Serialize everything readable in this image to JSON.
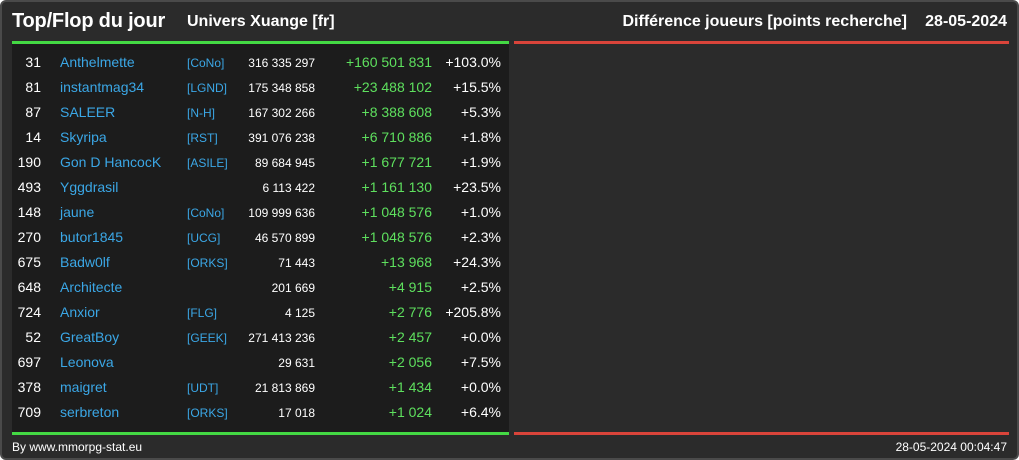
{
  "header": {
    "title": "Top/Flop du jour",
    "universe": "Univers Xuange [fr]",
    "stat_type": "Différence joueurs [points recherche]",
    "date": "28-05-2024"
  },
  "rows": [
    {
      "rank": "31",
      "player": "Anthelmette",
      "alliance": "[CoNo]",
      "points": "316 335 297",
      "diff": "+160 501 831",
      "pct": "+103.0%"
    },
    {
      "rank": "81",
      "player": "instantmag34",
      "alliance": "[LGND]",
      "points": "175 348 858",
      "diff": "+23 488 102",
      "pct": "+15.5%"
    },
    {
      "rank": "87",
      "player": "SALEER",
      "alliance": "[N-H]",
      "points": "167 302 266",
      "diff": "+8 388 608",
      "pct": "+5.3%"
    },
    {
      "rank": "14",
      "player": "Skyripa",
      "alliance": "[RST]",
      "points": "391 076 238",
      "diff": "+6 710 886",
      "pct": "+1.8%"
    },
    {
      "rank": "190",
      "player": "Gon D HancocK",
      "alliance": "[ASILE]",
      "points": "89 684 945",
      "diff": "+1 677 721",
      "pct": "+1.9%"
    },
    {
      "rank": "493",
      "player": "Yggdrasil",
      "alliance": "",
      "points": "6 113 422",
      "diff": "+1 161 130",
      "pct": "+23.5%"
    },
    {
      "rank": "148",
      "player": "jaune",
      "alliance": "[CoNo]",
      "points": "109 999 636",
      "diff": "+1 048 576",
      "pct": "+1.0%"
    },
    {
      "rank": "270",
      "player": "butor1845",
      "alliance": "[UCG]",
      "points": "46 570 899",
      "diff": "+1 048 576",
      "pct": "+2.3%"
    },
    {
      "rank": "675",
      "player": "Badw0lf",
      "alliance": "[ORKS]",
      "points": "71 443",
      "diff": "+13 968",
      "pct": "+24.3%"
    },
    {
      "rank": "648",
      "player": "Architecte",
      "alliance": "",
      "points": "201 669",
      "diff": "+4 915",
      "pct": "+2.5%"
    },
    {
      "rank": "724",
      "player": "Anxior",
      "alliance": "[FLG]",
      "points": "4 125",
      "diff": "+2 776",
      "pct": "+205.8%"
    },
    {
      "rank": "52",
      "player": "GreatBoy",
      "alliance": "[GEEK]",
      "points": "271 413 236",
      "diff": "+2 457",
      "pct": "+0.0%"
    },
    {
      "rank": "697",
      "player": "Leonova",
      "alliance": "",
      "points": "29 631",
      "diff": "+2 056",
      "pct": "+7.5%"
    },
    {
      "rank": "378",
      "player": "maigret",
      "alliance": "[UDT]",
      "points": "21 813 869",
      "diff": "+1 434",
      "pct": "+0.0%"
    },
    {
      "rank": "709",
      "player": "serbreton",
      "alliance": "[ORKS]",
      "points": "17 018",
      "diff": "+1 024",
      "pct": "+6.4%"
    }
  ],
  "footer": {
    "source": "By www.mmorpg-stat.eu",
    "timestamp": "28-05-2024 00:04:47"
  },
  "colors": {
    "background": "#2b2b2b",
    "table_background": "#1c1c1c",
    "top_accent": "#44d944",
    "flop_accent": "#d9443a",
    "link": "#3ba7e6",
    "gain": "#5ee05e"
  }
}
